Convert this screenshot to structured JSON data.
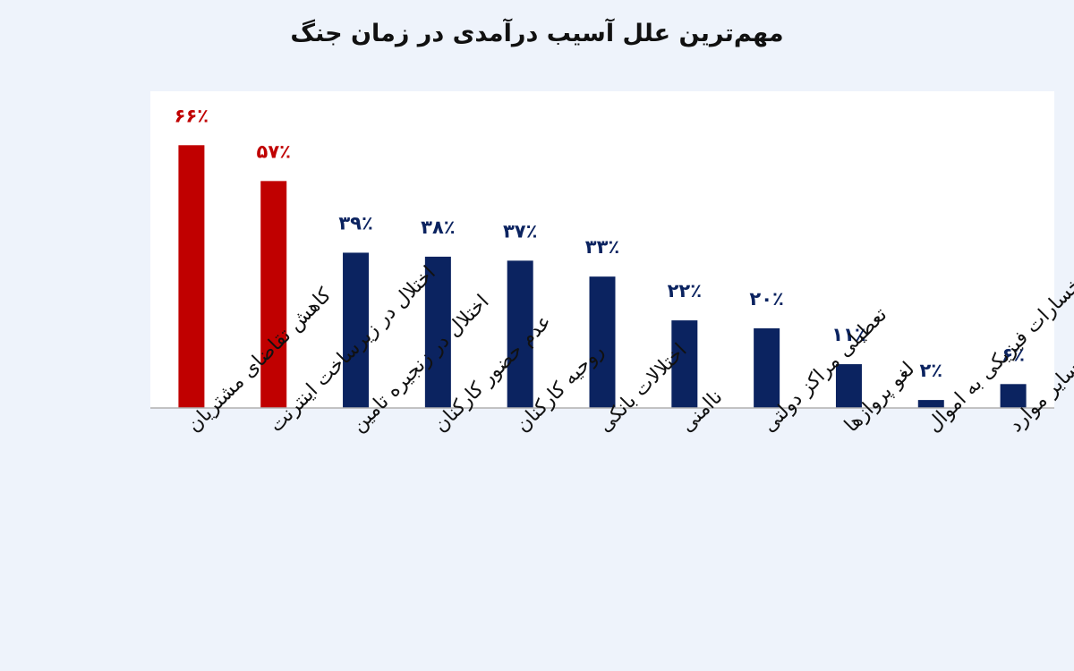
{
  "chart_data": {
    "type": "bar",
    "title": "مهم‌ترین علل آسیب درآمدی در زمان جنگ",
    "categories": [
      "کاهش تقاضای مشتریان",
      "اختلال در زیرساخت اینترنت",
      "اختلال در زنجیره تامین",
      "عدم حضور کارکنان",
      "روحیه کارکنان",
      "اختلالات بانکی",
      "ناامنی",
      "تعطیلی مراکز دولتی",
      "لغو پروازها",
      "خسارات فیزیکی به اموال",
      "سایر موارد"
    ],
    "values": [
      66,
      57,
      39,
      38,
      37,
      33,
      22,
      20,
      11,
      2,
      6
    ],
    "value_labels": [
      "۶۶٪",
      "۵۷٪",
      "۳۹٪",
      "۳۸٪",
      "۳۷٪",
      "۳۳٪",
      "۲۲٪",
      "۲۰٪",
      "۱۱٪",
      "۲٪",
      "۶٪"
    ],
    "highlight_count": 2,
    "colors": {
      "highlight": "#c00000",
      "normal": "#0b2360",
      "background": "#eef3fb",
      "plot_area": "#ffffff",
      "axis": "#b0b0b0"
    },
    "ylim": [
      0,
      75
    ],
    "grid": false,
    "legend": "none"
  }
}
